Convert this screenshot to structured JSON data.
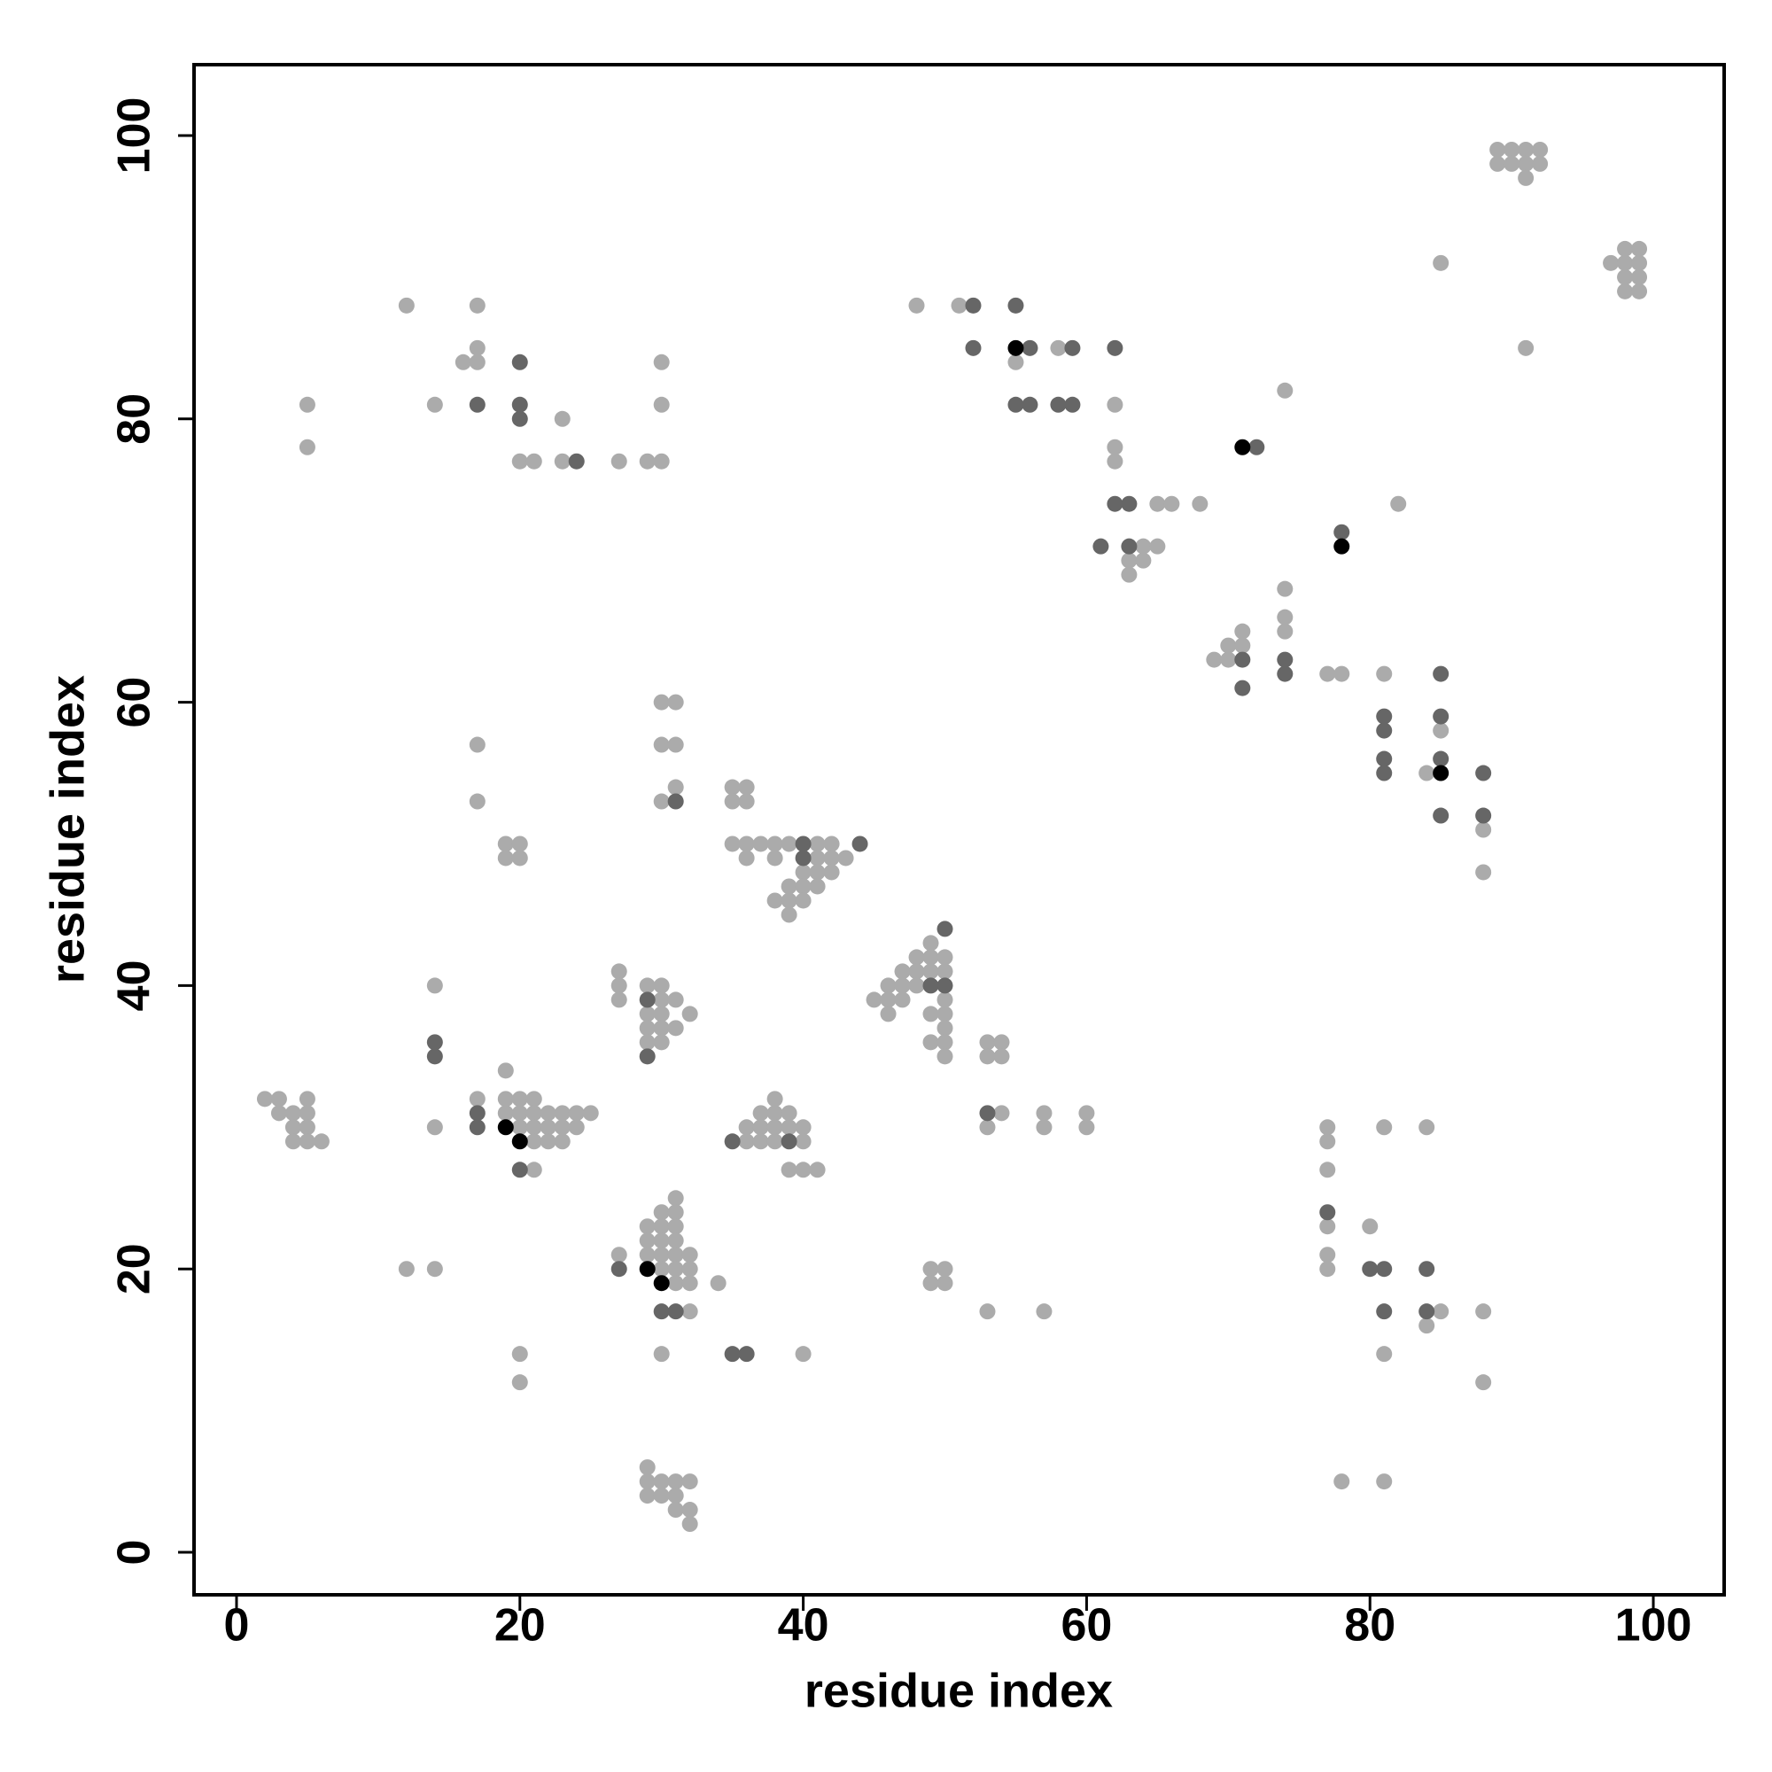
{
  "chart_data": {
    "type": "scatter",
    "xlabel": "residue index",
    "ylabel": "residue index",
    "xlim": [
      -3,
      105
    ],
    "ylim": [
      -3,
      105
    ],
    "xticks": [
      0,
      20,
      40,
      60,
      80,
      100
    ],
    "yticks": [
      0,
      20,
      40,
      60,
      80,
      100
    ],
    "grid": false,
    "series": [
      {
        "color": "#ababab",
        "x": [
          89,
          90,
          91,
          92,
          89,
          90,
          91,
          92,
          91,
          85,
          91,
          98,
          99,
          97,
          98,
          99,
          98,
          99,
          98,
          99,
          12,
          17,
          17,
          16,
          17,
          5,
          14,
          23,
          5,
          30,
          30,
          20,
          21,
          23,
          27,
          29,
          30,
          48,
          51,
          55,
          58,
          62,
          62,
          62,
          74,
          65,
          66,
          68,
          64,
          65,
          63,
          64,
          63,
          82,
          74,
          74,
          74,
          71,
          70,
          71,
          69,
          70,
          77,
          78,
          81,
          85,
          84,
          88,
          88,
          17,
          17,
          30,
          31,
          30,
          31,
          31,
          30,
          19,
          20,
          19,
          20,
          35,
          36,
          35,
          36,
          35,
          36,
          37,
          38,
          39,
          41,
          42,
          36,
          38,
          41,
          42,
          43,
          40,
          41,
          42,
          39,
          40,
          41,
          38,
          39,
          40,
          39,
          49,
          48,
          49,
          50,
          47,
          48,
          49,
          50,
          46,
          47,
          48,
          45,
          46,
          47,
          50,
          46,
          49,
          50,
          50,
          49,
          50,
          50,
          27,
          27,
          27,
          29,
          30,
          30,
          31,
          29,
          30,
          32,
          29,
          30,
          31,
          29,
          30,
          14,
          53,
          54,
          53,
          54,
          54,
          57,
          60,
          53,
          57,
          60,
          2,
          3,
          5,
          3,
          4,
          5,
          4,
          5,
          4,
          5,
          6,
          14,
          19,
          17,
          19,
          20,
          21,
          19,
          20,
          21,
          22,
          23,
          24,
          25,
          20,
          21,
          22,
          23,
          24,
          21,
          22,
          23,
          21,
          38,
          37,
          38,
          39,
          36,
          37,
          38,
          39,
          40,
          36,
          37,
          38,
          40,
          39,
          40,
          41,
          31,
          30,
          31,
          29,
          30,
          31,
          29,
          30,
          31,
          29,
          30,
          31,
          32,
          27,
          30,
          31,
          32,
          31,
          32,
          34,
          32,
          12,
          14,
          20,
          20,
          30,
          40,
          29,
          29,
          30,
          31,
          32,
          29,
          30,
          31,
          31,
          32,
          32,
          49,
          50,
          49,
          50,
          53,
          57,
          77,
          77,
          77,
          77,
          77,
          77,
          80,
          81,
          84,
          85,
          84,
          88,
          81,
          88,
          78,
          81
        ],
        "y": [
          99,
          99,
          99,
          99,
          98,
          98,
          98,
          98,
          97,
          91,
          85,
          92,
          92,
          91,
          91,
          91,
          90,
          90,
          89,
          89,
          88,
          88,
          85,
          84,
          84,
          81,
          81,
          80,
          78,
          84,
          81,
          77,
          77,
          77,
          77,
          77,
          77,
          88,
          88,
          84,
          85,
          81,
          78,
          77,
          82,
          74,
          74,
          74,
          71,
          71,
          70,
          70,
          69,
          74,
          68,
          66,
          65,
          65,
          64,
          64,
          63,
          63,
          62,
          62,
          62,
          58,
          55,
          51,
          48,
          57,
          53,
          60,
          60,
          57,
          57,
          54,
          53,
          50,
          50,
          49,
          49,
          54,
          54,
          53,
          53,
          50,
          50,
          50,
          50,
          50,
          50,
          50,
          49,
          49,
          49,
          49,
          49,
          48,
          48,
          48,
          47,
          47,
          47,
          46,
          46,
          46,
          45,
          43,
          42,
          42,
          42,
          41,
          41,
          41,
          41,
          40,
          40,
          40,
          39,
          39,
          39,
          39,
          38,
          38,
          38,
          37,
          36,
          36,
          35,
          41,
          40,
          39,
          40,
          40,
          39,
          39,
          38,
          38,
          38,
          37,
          37,
          37,
          36,
          36,
          40,
          36,
          36,
          35,
          35,
          31,
          31,
          31,
          30,
          30,
          30,
          32,
          32,
          32,
          31,
          31,
          31,
          30,
          30,
          29,
          29,
          29,
          30,
          34,
          32,
          32,
          32,
          32,
          31,
          31,
          31,
          31,
          31,
          31,
          31,
          30,
          30,
          30,
          30,
          30,
          29,
          29,
          29,
          27,
          32,
          31,
          31,
          31,
          30,
          30,
          30,
          30,
          30,
          29,
          29,
          29,
          29,
          27,
          27,
          27,
          25,
          24,
          24,
          23,
          23,
          23,
          22,
          22,
          22,
          21,
          21,
          21,
          21,
          21,
          20,
          20,
          20,
          19,
          19,
          19,
          17,
          20,
          20,
          14,
          12,
          14,
          14,
          6,
          5,
          5,
          5,
          5,
          4,
          4,
          4,
          3,
          3,
          2,
          20,
          20,
          19,
          19,
          17,
          17,
          30,
          29,
          27,
          23,
          21,
          20,
          23,
          30,
          30,
          17,
          16,
          17,
          14,
          12,
          5,
          5
        ]
      },
      {
        "color": "#666666",
        "x": [
          17,
          20,
          20,
          20,
          24,
          52,
          55,
          56,
          52,
          59,
          62,
          55,
          56,
          58,
          59,
          72,
          62,
          63,
          61,
          63,
          78,
          71,
          74,
          74,
          71,
          85,
          81,
          85,
          81,
          81,
          85,
          81,
          88,
          85,
          88,
          31,
          40,
          44,
          40,
          50,
          49,
          50,
          29,
          29,
          14,
          14,
          53,
          17,
          17,
          20,
          35,
          39,
          27,
          30,
          31,
          35,
          36,
          77,
          80,
          81,
          84,
          81,
          84
        ],
        "y": [
          81,
          81,
          80,
          84,
          77,
          88,
          88,
          85,
          85,
          85,
          85,
          81,
          81,
          81,
          81,
          78,
          74,
          74,
          71,
          71,
          72,
          63,
          63,
          62,
          61,
          62,
          59,
          59,
          58,
          56,
          56,
          55,
          55,
          52,
          52,
          53,
          50,
          50,
          49,
          44,
          40,
          40,
          39,
          35,
          36,
          35,
          31,
          31,
          30,
          27,
          29,
          29,
          20,
          17,
          17,
          14,
          14,
          24,
          20,
          20,
          20,
          17,
          17
        ]
      },
      {
        "color": "#000000",
        "x": [
          55,
          71,
          78,
          85,
          19,
          20,
          29,
          30
        ],
        "y": [
          85,
          78,
          71,
          55,
          30,
          29,
          20,
          19
        ]
      }
    ]
  }
}
